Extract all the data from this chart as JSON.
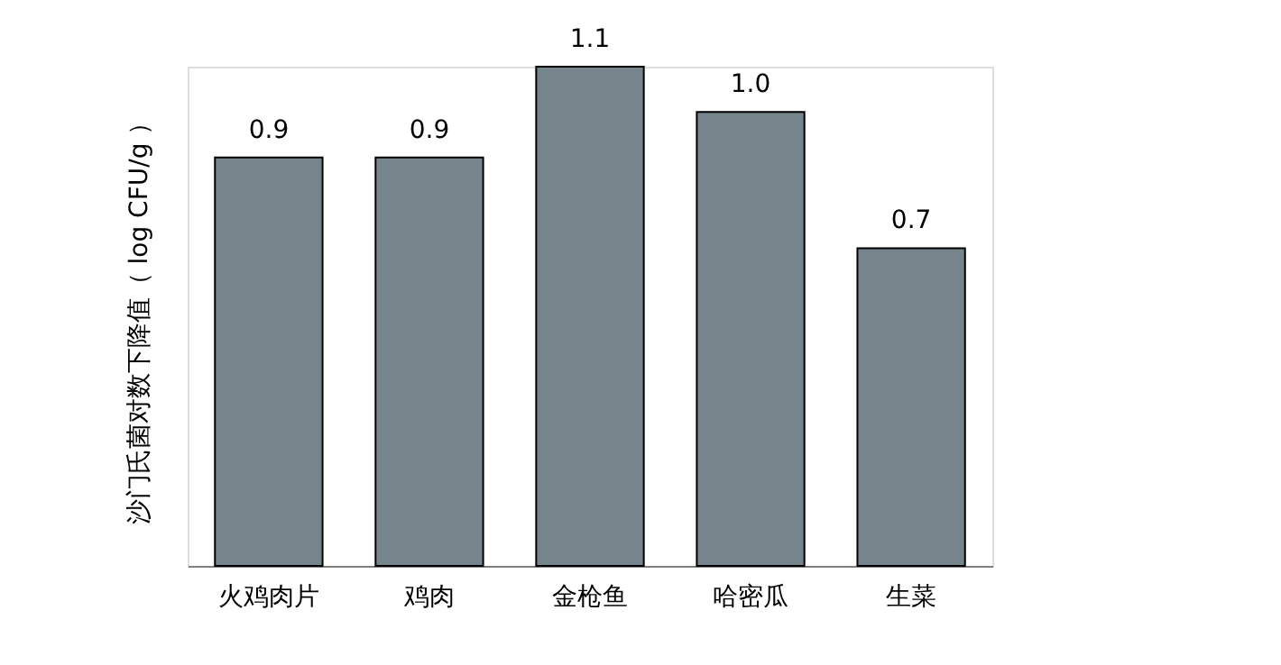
{
  "chart_data": {
    "type": "bar",
    "ylabel": "沙门氏菌对数下降值（ log CFU/g ）",
    "categories": [
      "火鸡肉片",
      "鸡肉",
      "金枪鱼",
      "哈密瓜",
      "生菜"
    ],
    "values": [
      0.9,
      0.9,
      1.1,
      1.0,
      0.7
    ],
    "value_labels": [
      "0.9",
      "0.9",
      "1.1",
      "1.0",
      "0.7"
    ],
    "color": "#76848c"
  }
}
